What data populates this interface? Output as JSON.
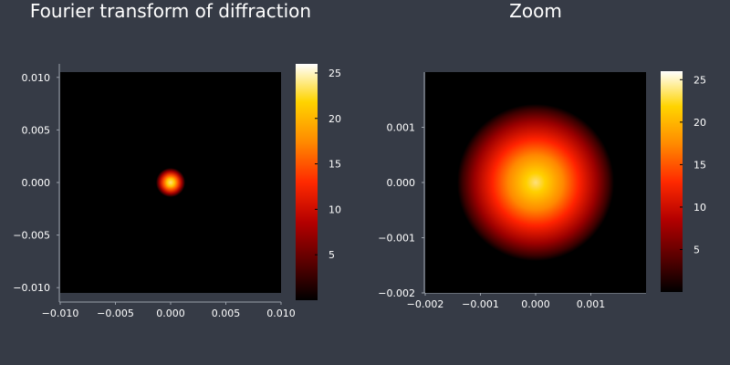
{
  "colors": {
    "background": "#363b46",
    "axis": "#9aa0aa",
    "colormap": [
      "#000000",
      "#5a0000",
      "#b40000",
      "#ff2a00",
      "#ff8a00",
      "#ffd400",
      "#ffffff"
    ]
  },
  "chart_data": [
    {
      "type": "heatmap",
      "title": "Fourier transform of diffraction",
      "xlabel": "",
      "ylabel": "",
      "xlim": [
        -0.01,
        0.01
      ],
      "ylim": [
        -0.0105,
        0.0105
      ],
      "x_ticks": [
        "−0.010",
        "−0.005",
        "0.000",
        "0.005",
        "0.010"
      ],
      "x_tick_values": [
        -0.01,
        -0.005,
        0.0,
        0.005,
        0.01
      ],
      "y_ticks": [
        "0.010",
        "0.005",
        "0.000",
        "−0.005",
        "−0.010"
      ],
      "y_tick_values": [
        0.01,
        0.005,
        0.0,
        -0.005,
        -0.01
      ],
      "peak_value": 25.8,
      "peak_location": [
        0.0,
        0.0
      ],
      "colorbar": {
        "range": [
          0,
          26
        ],
        "ticks": [
          "5",
          "10",
          "15",
          "20",
          "25"
        ],
        "tick_values": [
          5,
          10,
          15,
          20,
          25
        ]
      }
    },
    {
      "type": "heatmap",
      "title": "Zoom",
      "xlabel": "",
      "ylabel": "",
      "xlim": [
        -0.002,
        0.002
      ],
      "ylim": [
        -0.002,
        0.002
      ],
      "x_ticks": [
        "−0.002",
        "−0.001",
        "0.000",
        "0.001"
      ],
      "x_tick_values": [
        -0.002,
        -0.001,
        0.0,
        0.001
      ],
      "y_ticks": [
        "0.001",
        "0.000",
        "−0.001",
        "−0.002"
      ],
      "y_tick_values": [
        0.001,
        0.0,
        -0.001,
        -0.002
      ],
      "peak_value": 25.8,
      "peak_location": [
        0.0,
        0.0
      ],
      "colorbar": {
        "range": [
          0,
          26
        ],
        "ticks": [
          "5",
          "10",
          "15",
          "20",
          "25"
        ],
        "tick_values": [
          5,
          10,
          15,
          20,
          25
        ]
      }
    }
  ]
}
